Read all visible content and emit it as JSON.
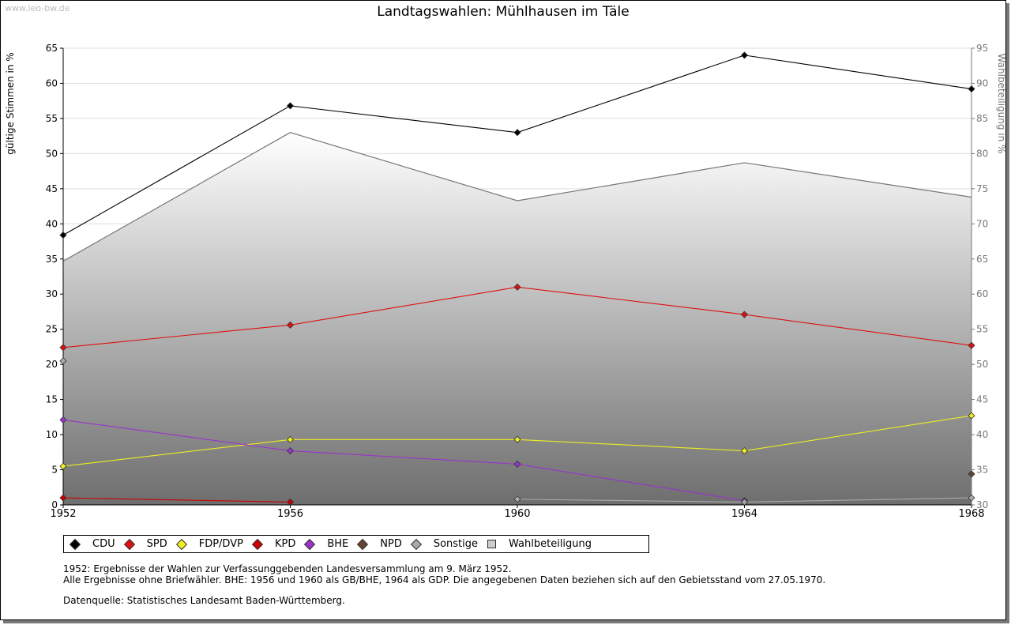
{
  "watermark": "www.leo-bw.de",
  "chart_data": {
    "type": "line",
    "title": "Landtagswahlen: Mühlhausen im Täle",
    "ylabel": "gültige Stimmen in %",
    "y2label": "Wahlbeteiligung in %",
    "ylim": [
      0,
      65
    ],
    "y2lim": [
      30,
      95
    ],
    "y_ticks": [
      0,
      5,
      10,
      15,
      20,
      25,
      30,
      35,
      40,
      45,
      50,
      55,
      60,
      65
    ],
    "y2_ticks": [
      30,
      35,
      40,
      45,
      50,
      55,
      60,
      65,
      70,
      75,
      80,
      85,
      90,
      95
    ],
    "categories": [
      "1952",
      "1956",
      "1960",
      "1964",
      "1968"
    ],
    "turnout": {
      "name": "Wahlbeteiligung",
      "values": [
        64.7,
        83.0,
        73.3,
        78.7,
        73.8
      ]
    },
    "series": [
      {
        "name": "CDU",
        "color": "#000000",
        "values": [
          38.4,
          56.8,
          53.0,
          64.0,
          59.2
        ]
      },
      {
        "name": "SPD",
        "color": "#dd1111",
        "values": [
          22.4,
          25.6,
          31.0,
          27.1,
          22.7
        ]
      },
      {
        "name": "FDP/DVP",
        "color": "#eeee22",
        "values": [
          5.5,
          9.3,
          9.3,
          7.7,
          12.7
        ]
      },
      {
        "name": "KPD",
        "color": "#cc0000",
        "values": [
          1.0,
          0.4,
          null,
          null,
          null
        ]
      },
      {
        "name": "BHE",
        "color": "#9933cc",
        "values": [
          12.1,
          7.7,
          5.8,
          0.6,
          null
        ]
      },
      {
        "name": "NPD",
        "color": "#664433",
        "values": [
          null,
          null,
          null,
          null,
          4.4
        ]
      },
      {
        "name": "Sonstige",
        "color": "#aaaaaa",
        "values": [
          20.5,
          null,
          0.8,
          0.4,
          1.0
        ]
      }
    ],
    "legend": [
      "CDU",
      "SPD",
      "FDP/DVP",
      "KPD",
      "BHE",
      "NPD",
      "Sonstige",
      "Wahlbeteiligung"
    ]
  },
  "notes": {
    "line1": "1952: Ergebnisse der Wahlen zur Verfassunggebenden Landesversammlung am 9. März 1952.",
    "line2": "Alle Ergebnisse ohne Briefwähler. BHE: 1956 und 1960 als GB/BHE, 1964 als GDP. Die angegebenen Daten beziehen sich auf den Gebietsstand vom 27.05.1970.",
    "source": "Datenquelle: Statistisches Landesamt Baden-Württemberg."
  },
  "colors": {
    "turnout_fill_top": "#ffffff",
    "turnout_fill_bottom": "#6e6e6e"
  }
}
